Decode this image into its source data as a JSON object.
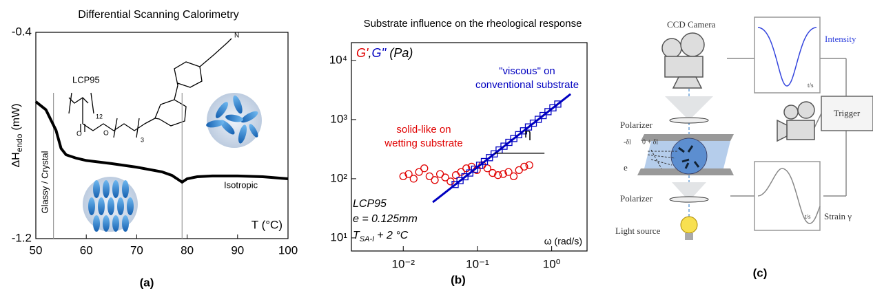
{
  "panel_labels": [
    "(a)",
    "(b)",
    "(c)"
  ],
  "chart_data": [
    {
      "type": "line",
      "title": "Differential Scanning Calorimetry",
      "xlabel": "T (°C)",
      "ylabel": [
        "ΔH",
        "endo",
        "(mW)"
      ],
      "x": [
        50,
        52,
        54,
        55,
        56,
        58,
        60,
        65,
        70,
        75,
        77,
        79,
        80,
        82,
        85,
        90,
        95,
        100
      ],
      "series": [
        {
          "color": "#000000",
          "values": [
            -0.669,
            -0.7,
            -0.78,
            -0.85,
            -0.875,
            -0.888,
            -0.897,
            -0.909,
            -0.923,
            -0.941,
            -0.955,
            -0.981,
            -0.968,
            -0.96,
            -0.957,
            -0.957,
            -0.96,
            -0.968
          ]
        }
      ],
      "xlim": [
        50,
        100
      ],
      "xticks": [
        50,
        60,
        70,
        80,
        90,
        100
      ],
      "ylim": [
        -1.2,
        -0.4
      ],
      "yticks": [
        -1.2,
        -0.4
      ],
      "vlines": [
        53.5,
        79
      ],
      "annotations": [
        "LCP95",
        "Glassy / Crystal",
        "Isotropic"
      ],
      "structure_labels": [
        "12",
        "O",
        "O",
        "3",
        "N"
      ]
    },
    {
      "type": "scatter",
      "log_x": true,
      "log_y": true,
      "title": "Substrate influence on the rheological response",
      "xlabel": "ω (rad/s)",
      "ylabel_parts": [
        "G'",
        ",",
        "G''",
        " (Pa)"
      ],
      "ylabel_colors": [
        "#e00000",
        "#000000",
        "#0000c0",
        "#000000"
      ],
      "xlim": [
        0.002,
        3
      ],
      "ylim": [
        6,
        20000
      ],
      "xticks": [
        {
          "value": 0.01,
          "label": "10⁻²"
        },
        {
          "value": 0.1,
          "label": "10⁻¹"
        },
        {
          "value": 1,
          "label": "10⁰"
        }
      ],
      "yticks": [
        {
          "value": 10,
          "label": "10¹"
        },
        {
          "value": 100,
          "label": "10²"
        },
        {
          "value": 1000,
          "label": "10³"
        },
        {
          "value": 10000,
          "label": "10⁴"
        }
      ],
      "series": [
        {
          "marker": "circle",
          "color": "#e00000",
          "x": [
            0.01,
            0.0118,
            0.0138,
            0.0163,
            0.0192,
            0.0226,
            0.0266,
            0.0313,
            0.0368,
            0.0434,
            0.0511,
            0.0601,
            0.0708,
            0.0834,
            0.0982,
            0.116,
            0.136,
            0.16,
            0.189,
            0.222,
            0.262,
            0.308,
            0.363,
            0.427,
            0.5
          ],
          "values": [
            110,
            120,
            100,
            130,
            150,
            110,
            95,
            120,
            105,
            90,
            115,
            130,
            150,
            160,
            140,
            170,
            150,
            125,
            115,
            120,
            130,
            110,
            140,
            160,
            170
          ]
        },
        {
          "marker": "square",
          "color": "#0000c0",
          "x": [
            0.05,
            0.0582,
            0.0677,
            0.0788,
            0.0917,
            0.107,
            0.124,
            0.145,
            0.168,
            0.196,
            0.228,
            0.265,
            0.309,
            0.359,
            0.418,
            0.487,
            0.566,
            0.659,
            0.767,
            0.893,
            1.04,
            1.21
          ],
          "values": [
            80,
            93,
            108,
            125,
            145,
            169,
            195,
            227,
            263,
            306,
            355,
            412,
            479,
            555,
            645,
            750,
            870,
            1010,
            1170,
            1360,
            1580,
            1830
          ]
        },
        {
          "marker": "line",
          "color": "#0000c0",
          "x": [
            0.025,
            1.8
          ],
          "values": [
            40,
            2700
          ]
        },
        {
          "marker": "line",
          "color": "#000000",
          "x": [
            0.17,
            0.8
          ],
          "values": [
            270,
            270
          ]
        }
      ],
      "viscous_label": [
        "\"viscous\" on",
        "conventional substrate"
      ],
      "solid_label": [
        "solid-like on",
        "wetting substrate"
      ],
      "eta_label": "η",
      "conditions": [
        "LCP95",
        "e = 0.125mm"
      ],
      "temperature": [
        "T",
        "SA-I",
        "+ 2 °C"
      ]
    }
  ],
  "diagram": {
    "camera": "CCD Camera",
    "intensity": "Intensity",
    "intensity_axis": "t/s",
    "trigger": "Trigger",
    "polarizer_top": "Polarizer",
    "shear_left": "-δl",
    "shear_right": "0 + δl",
    "gap": "e",
    "polarizer_bottom": "Polarizer",
    "light": "Light source",
    "strain_axis": "t/s",
    "strain": "Strain γ"
  }
}
